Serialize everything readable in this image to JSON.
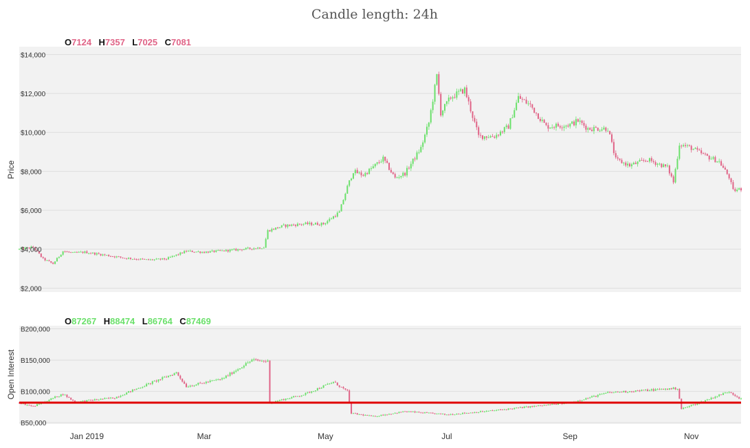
{
  "chart_data": {
    "type": "candlestick",
    "title": "Candle length: 24h",
    "colors": {
      "up": "#6be06b",
      "down": "#e06487",
      "reference_line": "#e00000",
      "panel_bg": "#f2f2f2",
      "grid": "#dddddd"
    },
    "x_axis": {
      "ticks": [
        {
          "date": "2019-01-01",
          "label": "Jan 2019"
        },
        {
          "date": "2019-03-01",
          "label": "Mar"
        },
        {
          "date": "2019-05-01",
          "label": "May"
        },
        {
          "date": "2019-07-01",
          "label": "Jul"
        },
        {
          "date": "2019-09-01",
          "label": "Sep"
        },
        {
          "date": "2019-11-01",
          "label": "Nov"
        }
      ],
      "range": [
        "2018-11-28",
        "2019-11-26"
      ]
    },
    "panels": [
      {
        "id": "price",
        "ylabel": "Price",
        "ylim": [
          1800,
          14400
        ],
        "yticks": [
          {
            "value": 2000,
            "label": "$2,000"
          },
          {
            "value": 4000,
            "label": "$4,000"
          },
          {
            "value": 6000,
            "label": "$6,000"
          },
          {
            "value": 8000,
            "label": "$8,000"
          },
          {
            "value": 10000,
            "label": "$10,000"
          },
          {
            "value": 12000,
            "label": "$12,000"
          },
          {
            "value": 14000,
            "label": "$14,000"
          }
        ],
        "ohlc": {
          "color": "#e06487",
          "O": "7124",
          "H": "7357",
          "L": "7025",
          "C": "7081"
        },
        "keypoints": [
          [
            "2018-11-28",
            4000
          ],
          [
            "2018-12-05",
            4100
          ],
          [
            "2018-12-10",
            3500
          ],
          [
            "2018-12-15",
            3250
          ],
          [
            "2018-12-20",
            3900
          ],
          [
            "2018-12-25",
            3800
          ],
          [
            "2018-12-31",
            3850
          ],
          [
            "2019-01-10",
            3700
          ],
          [
            "2019-01-20",
            3550
          ],
          [
            "2019-02-01",
            3450
          ],
          [
            "2019-02-10",
            3500
          ],
          [
            "2019-02-20",
            3900
          ],
          [
            "2019-03-01",
            3850
          ],
          [
            "2019-03-15",
            3950
          ],
          [
            "2019-03-31",
            4100
          ],
          [
            "2019-04-02",
            4950
          ],
          [
            "2019-04-10",
            5200
          ],
          [
            "2019-04-20",
            5300
          ],
          [
            "2019-04-30",
            5300
          ],
          [
            "2019-05-08",
            5900
          ],
          [
            "2019-05-12",
            7200
          ],
          [
            "2019-05-15",
            8000
          ],
          [
            "2019-05-20",
            7800
          ],
          [
            "2019-05-30",
            8650
          ],
          [
            "2019-06-05",
            7650
          ],
          [
            "2019-06-10",
            7900
          ],
          [
            "2019-06-18",
            9200
          ],
          [
            "2019-06-22",
            10500
          ],
          [
            "2019-06-26",
            12900
          ],
          [
            "2019-06-28",
            11000
          ],
          [
            "2019-07-03",
            11800
          ],
          [
            "2019-07-10",
            12200
          ],
          [
            "2019-07-17",
            9800
          ],
          [
            "2019-07-25",
            9800
          ],
          [
            "2019-08-01",
            10300
          ],
          [
            "2019-08-06",
            11800
          ],
          [
            "2019-08-12",
            11400
          ],
          [
            "2019-08-20",
            10300
          ],
          [
            "2019-09-01",
            10400
          ],
          [
            "2019-09-05",
            10600
          ],
          [
            "2019-09-10",
            10200
          ],
          [
            "2019-09-20",
            10200
          ],
          [
            "2019-09-24",
            8600
          ],
          [
            "2019-10-01",
            8300
          ],
          [
            "2019-10-10",
            8600
          ],
          [
            "2019-10-20",
            8200
          ],
          [
            "2019-10-23",
            7450
          ],
          [
            "2019-10-26",
            9400
          ],
          [
            "2019-11-01",
            9200
          ],
          [
            "2019-11-08",
            8800
          ],
          [
            "2019-11-15",
            8500
          ],
          [
            "2019-11-20",
            7700
          ],
          [
            "2019-11-22",
            7000
          ],
          [
            "2019-11-26",
            7100
          ]
        ]
      },
      {
        "id": "open_interest",
        "ylabel": "Open Interest",
        "ylim": [
          48000,
          205000
        ],
        "yticks": [
          {
            "value": 50000,
            "label": "B50,000"
          },
          {
            "value": 100000,
            "label": "B100,000"
          },
          {
            "value": 150000,
            "label": "B150,000"
          },
          {
            "value": 200000,
            "label": "B200,000"
          }
        ],
        "reference_line": 82000,
        "ohlc": {
          "color": "#6be06b",
          "O": "87267",
          "H": "88474",
          "L": "86764",
          "C": "87469"
        },
        "keypoints": [
          [
            "2018-11-28",
            82000
          ],
          [
            "2018-12-05",
            76000
          ],
          [
            "2018-12-20",
            96000
          ],
          [
            "2018-12-26",
            83000
          ],
          [
            "2019-01-15",
            90000
          ],
          [
            "2019-02-15",
            130000
          ],
          [
            "2019-02-20",
            108000
          ],
          [
            "2019-03-10",
            120000
          ],
          [
            "2019-03-25",
            150000
          ],
          [
            "2019-04-02",
            148000
          ],
          [
            "2019-04-03",
            82000
          ],
          [
            "2019-04-20",
            95000
          ],
          [
            "2019-05-05",
            115000
          ],
          [
            "2019-05-12",
            100000
          ],
          [
            "2019-05-14",
            65000
          ],
          [
            "2019-05-25",
            60000
          ],
          [
            "2019-06-10",
            68000
          ],
          [
            "2019-07-01",
            63000
          ],
          [
            "2019-07-20",
            68000
          ],
          [
            "2019-08-10",
            75000
          ],
          [
            "2019-09-01",
            82000
          ],
          [
            "2019-09-20",
            98000
          ],
          [
            "2019-10-25",
            105000
          ],
          [
            "2019-10-27",
            72000
          ],
          [
            "2019-11-05",
            82000
          ],
          [
            "2019-11-20",
            100000
          ],
          [
            "2019-11-26",
            87469
          ]
        ]
      }
    ]
  }
}
